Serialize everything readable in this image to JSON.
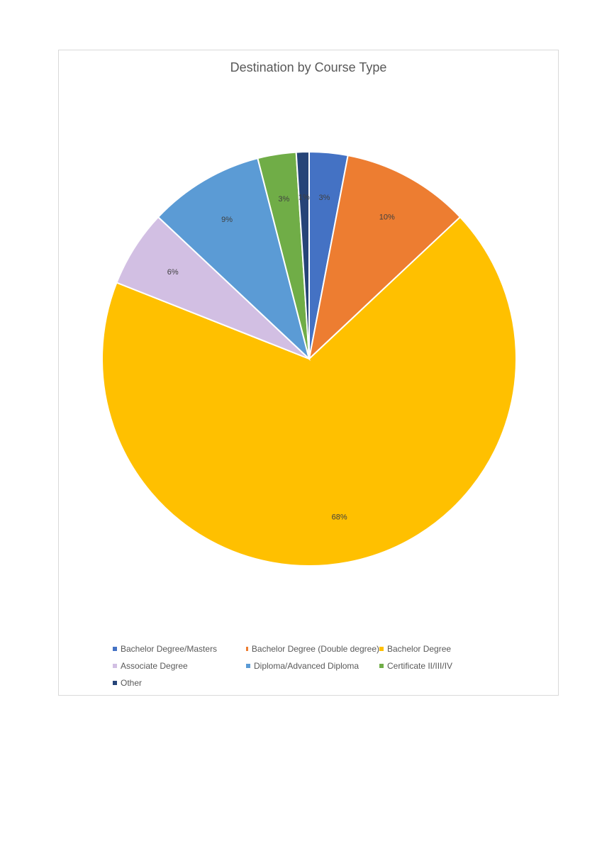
{
  "chart_data": {
    "type": "pie",
    "title": "Destination by Course Type",
    "categories": [
      "Bachelor Degree/Masters",
      "Bachelor Degree (Double degree)",
      "Bachelor Degree",
      "Associate Degree",
      "Diploma/Advanced Diploma",
      "Certificate II/III/IV",
      "Other"
    ],
    "values": [
      3,
      10,
      68,
      6,
      9,
      3,
      1
    ],
    "labels": [
      "3%",
      "10%",
      "68%",
      "6%",
      "9%",
      "3%",
      "1%"
    ],
    "colors": [
      "#4472c4",
      "#ed7d31",
      "#ffc000",
      "#d2bfe3",
      "#5b9bd5",
      "#70ad47",
      "#264478"
    ],
    "legend_position": "bottom"
  }
}
